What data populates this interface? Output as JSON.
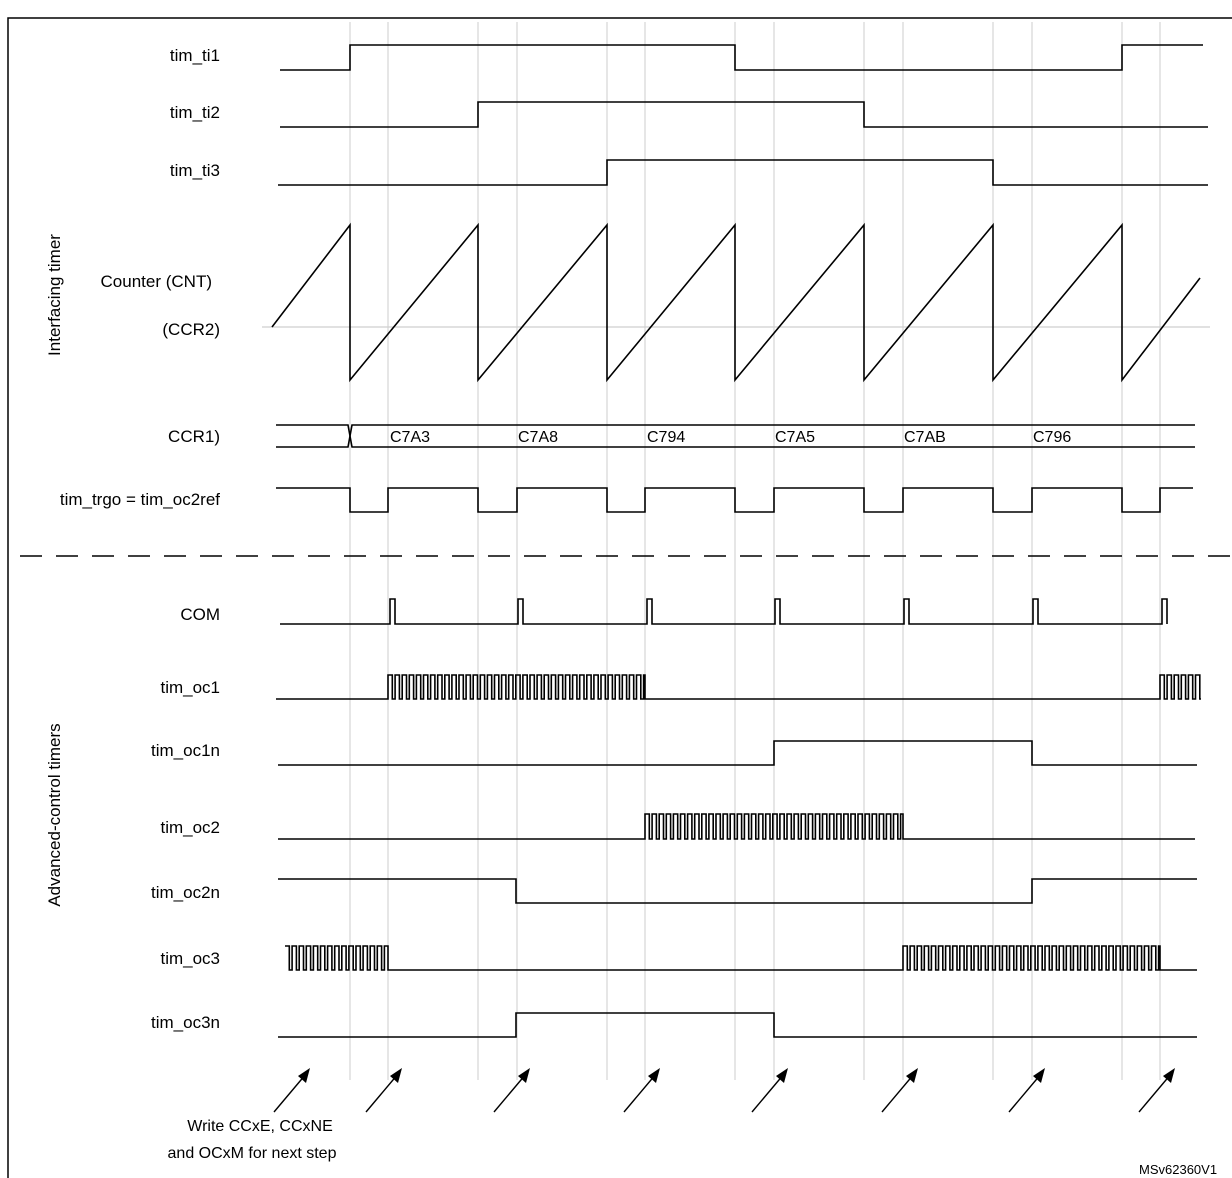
{
  "figure": {
    "title": "",
    "reference": "MSv62360V1"
  },
  "groups": {
    "interfacing": "Interfacing timer",
    "advanced": "Advanced-control timers"
  },
  "signals": {
    "tim_ti1": "tim_ti1",
    "tim_ti2": "tim_ti2",
    "tim_ti3": "tim_ti3",
    "counter": "Counter (CNT)",
    "ccr2": "(CCR2)",
    "ccr1": "CCR1)",
    "trgo": "tim_trgo = tim_oc2ref",
    "com": "COM",
    "tim_oc1": "tim_oc1",
    "tim_oc1n": "tim_oc1n",
    "tim_oc2": "tim_oc2",
    "tim_oc2n": "tim_oc2n",
    "tim_oc3": "tim_oc3",
    "tim_oc3n": "tim_oc3n"
  },
  "ccr1_values": [
    "C7A3",
    "C7A8",
    "C794",
    "C7A5",
    "C7AB",
    "C796"
  ],
  "annotation": {
    "line1": "Write CCxE, CCxNE",
    "line2": "and OCxM for next step"
  }
}
